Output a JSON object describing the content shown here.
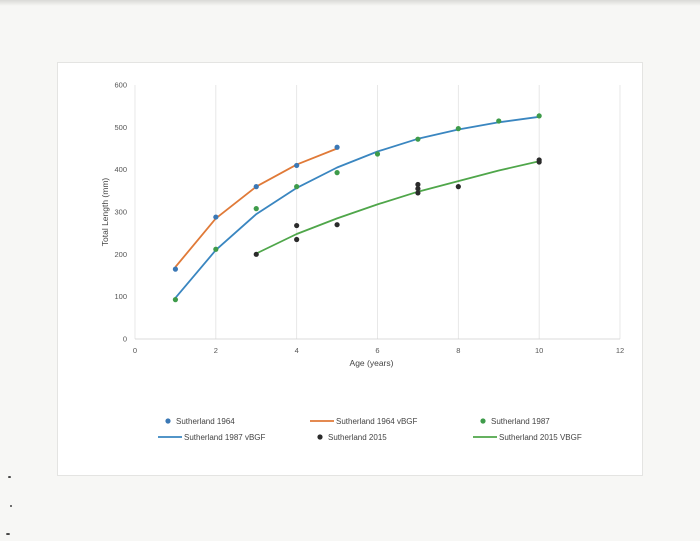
{
  "chart_data": {
    "type": "scatter",
    "title": "",
    "xlabel": "Age (years)",
    "ylabel": "Total Length (mm)",
    "xlim": [
      0,
      12
    ],
    "ylim": [
      0,
      600
    ],
    "x_ticks": [
      "0",
      "2",
      "4",
      "6",
      "8",
      "10",
      "12"
    ],
    "y_ticks": [
      "0",
      "100",
      "200",
      "300",
      "400",
      "500",
      "600"
    ],
    "grid": "vertical",
    "legend_position": "bottom",
    "series": [
      {
        "name": "Sutherland 1964",
        "kind": "points",
        "color": "#3b78b5",
        "points": [
          [
            1,
            165
          ],
          [
            2,
            288
          ],
          [
            3,
            360
          ],
          [
            4,
            410
          ],
          [
            5,
            453
          ]
        ]
      },
      {
        "name": "Sutherland 1964 vBGF",
        "kind": "line",
        "color": "#e07a38",
        "points": [
          [
            1,
            170
          ],
          [
            2,
            285
          ],
          [
            3,
            360
          ],
          [
            4,
            412
          ],
          [
            5,
            450
          ]
        ]
      },
      {
        "name": "Sutherland 1987",
        "kind": "points",
        "color": "#3e9b4a",
        "points": [
          [
            1,
            93
          ],
          [
            2,
            212
          ],
          [
            3,
            308
          ],
          [
            4,
            360
          ],
          [
            5,
            393
          ],
          [
            6,
            437
          ],
          [
            7,
            472
          ],
          [
            8,
            497
          ],
          [
            9,
            515
          ],
          [
            10,
            527
          ]
        ]
      },
      {
        "name": "Sutherland 1987 vBGF",
        "kind": "line",
        "color": "#3a86c0",
        "points": [
          [
            1,
            97
          ],
          [
            2,
            210
          ],
          [
            3,
            295
          ],
          [
            4,
            357
          ],
          [
            5,
            405
          ],
          [
            6,
            443
          ],
          [
            7,
            473
          ],
          [
            8,
            495
          ],
          [
            9,
            512
          ],
          [
            10,
            525
          ]
        ]
      },
      {
        "name": "Sutherland 2015",
        "kind": "points",
        "color": "#2b2b2b",
        "points": [
          [
            3,
            200
          ],
          [
            4,
            268
          ],
          [
            4,
            235
          ],
          [
            5,
            270
          ],
          [
            7,
            365
          ],
          [
            7,
            355
          ],
          [
            7,
            345
          ],
          [
            8,
            360
          ],
          [
            10,
            423
          ],
          [
            10,
            418
          ]
        ]
      },
      {
        "name": "Sutherland 2015 VBGF",
        "kind": "line",
        "color": "#4fa64a",
        "points": [
          [
            3,
            202
          ],
          [
            4,
            248
          ],
          [
            5,
            285
          ],
          [
            6,
            318
          ],
          [
            7,
            348
          ],
          [
            8,
            373
          ],
          [
            9,
            398
          ],
          [
            10,
            420
          ]
        ]
      }
    ]
  }
}
